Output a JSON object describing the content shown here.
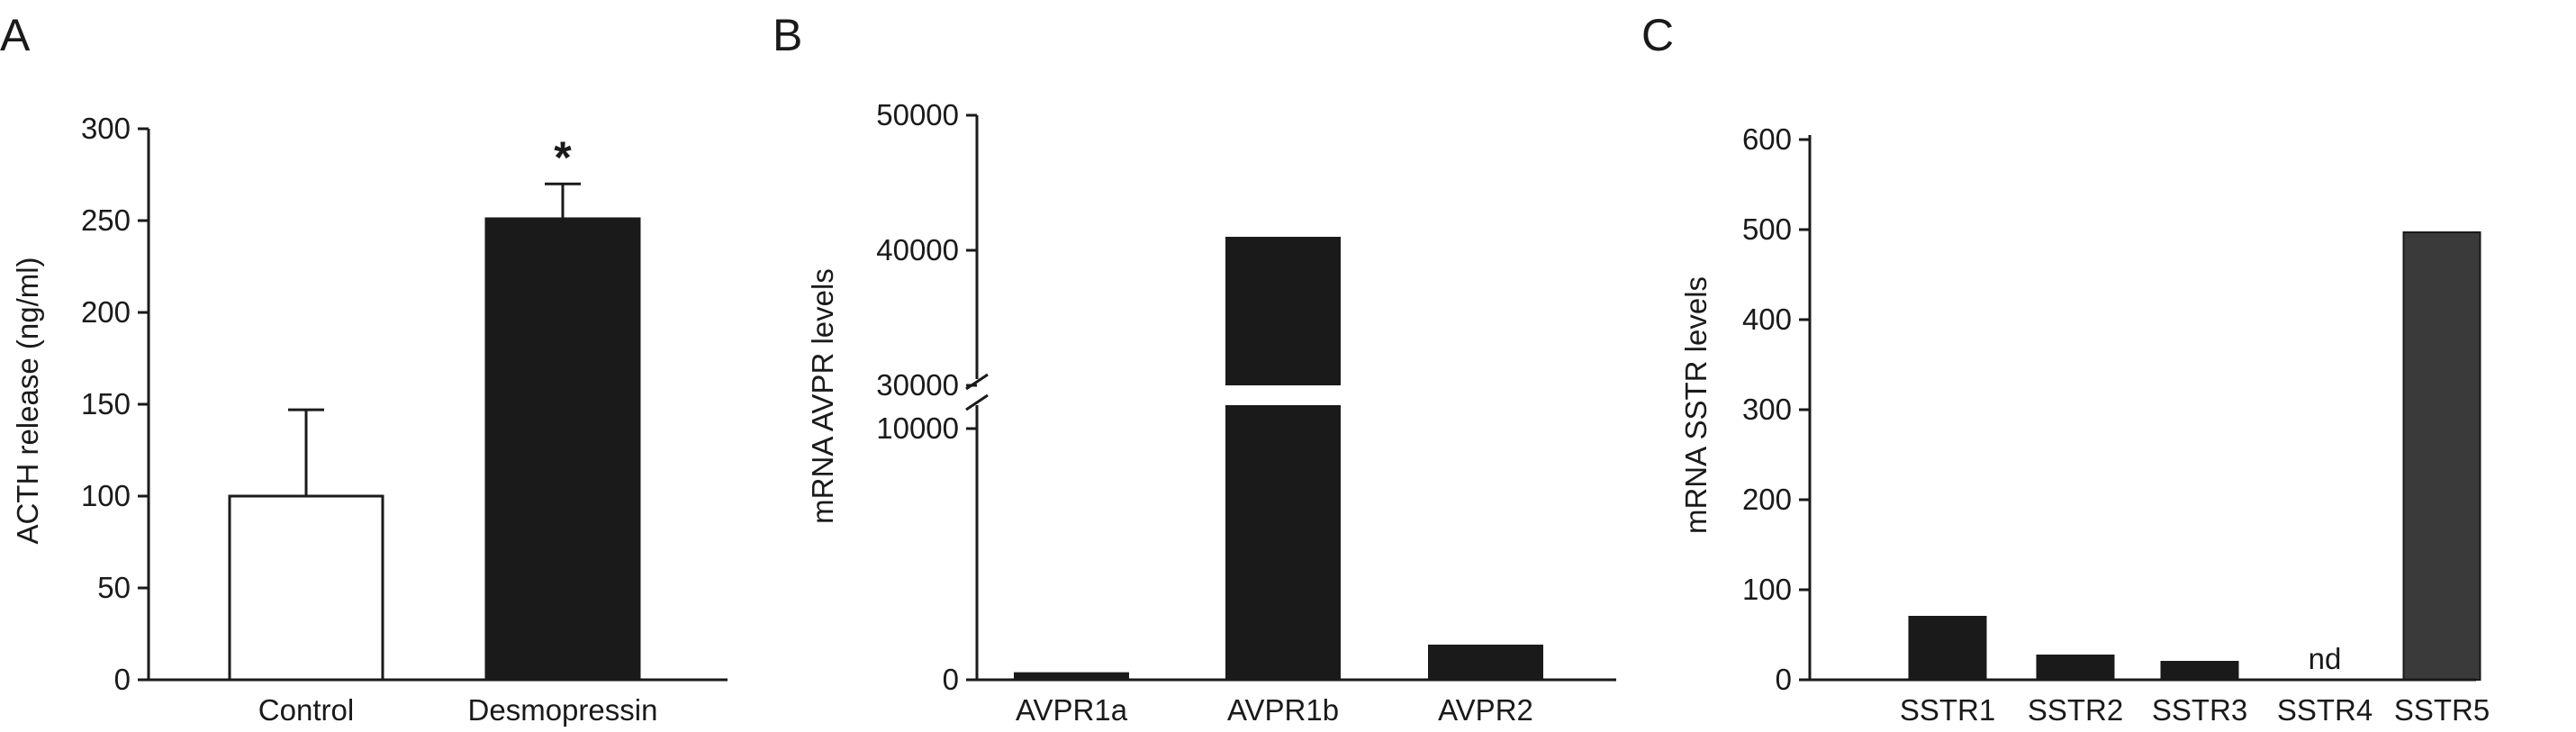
{
  "chart_data": [
    {
      "panel": "A",
      "type": "bar",
      "categories": [
        "Control",
        "Desmopressin"
      ],
      "values": [
        100,
        251
      ],
      "errors": [
        47,
        19
      ],
      "bar_colors": [
        "#ffffff",
        "#1a1a1a"
      ],
      "ylabel": "ACTH release (ng/ml)",
      "xlabel": "",
      "ylim": [
        0,
        300
      ],
      "yticks": [
        "0",
        "50",
        "100",
        "150",
        "200",
        "250",
        "300"
      ],
      "annotations": [
        {
          "category": "Desmopressin",
          "text": "*"
        }
      ],
      "grid": false
    },
    {
      "panel": "B",
      "type": "bar",
      "categories": [
        "AVPR1a",
        "AVPR1b",
        "AVPR2"
      ],
      "values": [
        300,
        41000,
        1400
      ],
      "ylabel": "mRNA AVPR levels",
      "xlabel": "",
      "ylim": [
        0,
        50000
      ],
      "axis_break": {
        "lower_max": 10000,
        "upper_min": 30000
      },
      "yticks_lower": [
        "0",
        "10000"
      ],
      "yticks_upper": [
        "30000",
        "40000",
        "50000"
      ],
      "bar_color": "#1a1a1a",
      "grid": false
    },
    {
      "panel": "C",
      "type": "bar",
      "categories": [
        "SSTR1",
        "SSTR2",
        "SSTR3",
        "SSTR4",
        "SSTR5"
      ],
      "values": [
        70,
        27,
        20,
        null,
        497
      ],
      "value_labels": [
        "",
        "",
        "",
        "nd",
        ""
      ],
      "bar_colors": [
        "#1a1a1a",
        "#1a1a1a",
        "#1a1a1a",
        "#1a1a1a",
        "#3a3a3a"
      ],
      "ylabel": "mRNA SSTR levels",
      "xlabel": "",
      "ylim": [
        0,
        600
      ],
      "yticks": [
        "0",
        "100",
        "200",
        "300",
        "400",
        "500",
        "600"
      ],
      "grid": false
    }
  ]
}
